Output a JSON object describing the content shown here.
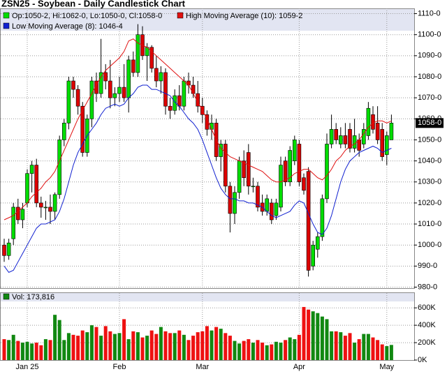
{
  "chart_data": {
    "type": "candlestick",
    "title": "ZSN25 - Soybean - Daily Candlestick Chart",
    "categories": [
      null,
      null,
      null,
      null,
      null,
      "Jan 25",
      null,
      null,
      null,
      null,
      null,
      null,
      null,
      null,
      null,
      null,
      null,
      null,
      null,
      null,
      null,
      null,
      null,
      null,
      null,
      "Feb",
      null,
      null,
      null,
      null,
      null,
      null,
      null,
      null,
      null,
      null,
      null,
      null,
      null,
      null,
      null,
      null,
      null,
      "Mar",
      null,
      null,
      null,
      null,
      null,
      null,
      null,
      null,
      null,
      null,
      null,
      null,
      null,
      null,
      null,
      null,
      null,
      null,
      null,
      null,
      "Apr",
      null,
      null,
      null,
      null,
      null,
      null,
      null,
      null,
      null,
      null,
      null,
      null,
      null,
      null,
      null,
      null,
      null,
      null,
      "May",
      null
    ],
    "ohlc": {
      "name": "Op:1050-2, Hi:1062-0, Lo:1050-0, Cl:1058-0",
      "up_color": "#00dd00",
      "down_color": "#dd0000",
      "open": [
        1000,
        995,
        1003,
        1018,
        1012,
        1020,
        1034,
        1038,
        1020,
        1018,
        1018,
        1016,
        1024,
        1050,
        1058,
        1078,
        1074,
        1066,
        1044,
        1060,
        1078,
        1072,
        1082,
        1078,
        1070,
        1072,
        1075,
        1070,
        1088,
        1082,
        1100,
        1090,
        1094,
        1084,
        1078,
        1082,
        1066,
        1064,
        1071,
        1066,
        1078,
        1076,
        1072,
        1066,
        1062,
        1055,
        1058,
        1042,
        1048,
        1028,
        1015,
        1025,
        1040,
        1044,
        1028,
        1028,
        1020,
        1016,
        1020,
        1014,
        1018,
        1040,
        1030,
        1040,
        1048,
        1032,
        1035,
        990,
        998,
        1004,
        1022,
        1048,
        1055,
        1048,
        1052,
        1055,
        1046,
        1050,
        1048,
        1052,
        1062,
        1058,
        1055,
        1043,
        1050
      ],
      "high": [
        1003,
        1003,
        1020,
        1022,
        1020,
        1036,
        1040,
        1041,
        1023,
        1021,
        1024,
        1025,
        1052,
        1060,
        1080,
        1080,
        1076,
        1068,
        1062,
        1080,
        1082,
        1098,
        1086,
        1088,
        1075,
        1080,
        1086,
        1090,
        1092,
        1105,
        1104,
        1096,
        1095,
        1090,
        1085,
        1084,
        1070,
        1074,
        1076,
        1080,
        1082,
        1080,
        1078,
        1070,
        1064,
        1062,
        1060,
        1050,
        1050,
        1030,
        1028,
        1042,
        1045,
        1048,
        1032,
        1030,
        1024,
        1024,
        1022,
        1022,
        1042,
        1042,
        1047,
        1052,
        1050,
        1034,
        1037,
        1002,
        1006,
        1024,
        1053,
        1062,
        1058,
        1056,
        1058,
        1058,
        1060,
        1053,
        1058,
        1068,
        1066,
        1066,
        1058,
        1054,
        1062
      ],
      "low": [
        992,
        993,
        1000,
        1010,
        1008,
        1018,
        1025,
        1018,
        1013,
        1012,
        1010,
        1012,
        1022,
        1047,
        1055,
        1070,
        1062,
        1042,
        1042,
        1056,
        1068,
        1070,
        1074,
        1065,
        1066,
        1068,
        1068,
        1063,
        1080,
        1080,
        1088,
        1078,
        1082,
        1075,
        1072,
        1062,
        1060,
        1062,
        1064,
        1064,
        1072,
        1070,
        1063,
        1058,
        1052,
        1050,
        1040,
        1035,
        1025,
        1006,
        1010,
        1022,
        1028,
        1024,
        1025,
        1016,
        1014,
        1014,
        1010,
        1012,
        1016,
        1028,
        1028,
        1038,
        1028,
        1024,
        985,
        988,
        994,
        1002,
        1020,
        1046,
        1048,
        1046,
        1046,
        1044,
        1044,
        1042,
        1046,
        1050,
        1053,
        1048,
        1040,
        1038,
        1050
      ],
      "close": [
        995,
        1001,
        1018,
        1012,
        1017,
        1034,
        1038,
        1020,
        1018,
        1018,
        1016,
        1024,
        1050,
        1058,
        1078,
        1074,
        1066,
        1044,
        1060,
        1078,
        1072,
        1082,
        1078,
        1070,
        1072,
        1075,
        1070,
        1088,
        1082,
        1100,
        1090,
        1094,
        1084,
        1078,
        1082,
        1066,
        1064,
        1071,
        1066,
        1078,
        1076,
        1072,
        1066,
        1062,
        1055,
        1058,
        1042,
        1048,
        1028,
        1015,
        1025,
        1040,
        1032,
        1028,
        1028,
        1018,
        1016,
        1022,
        1012,
        1020,
        1038,
        1030,
        1045,
        1050,
        1030,
        1026,
        988,
        1000,
        1004,
        1022,
        1048,
        1055,
        1050,
        1052,
        1048,
        1046,
        1052,
        1045,
        1055,
        1065,
        1055,
        1050,
        1042,
        1052,
        1058
      ]
    },
    "last_price_label": "1058-0",
    "series": [
      {
        "name": "High Moving Average (10): 1059-2",
        "color": "#e01010",
        "values": [
          1012,
          1013,
          1014,
          1016,
          1018,
          1020,
          1023,
          1025,
          1027,
          1030,
          1032,
          1035,
          1040,
          1045,
          1050,
          1055,
          1060,
          1064,
          1068,
          1072,
          1076,
          1080,
          1083,
          1085,
          1087,
          1089,
          1092,
          1097,
          1098,
          1096,
          1095,
          1094,
          1092,
          1090,
          1088,
          1086,
          1084,
          1082,
          1080,
          1078,
          1076,
          1072,
          1068,
          1064,
          1060,
          1055,
          1050,
          1046,
          1044,
          1042,
          1041,
          1040,
          1039,
          1038,
          1037,
          1036,
          1035,
          1033,
          1031,
          1030,
          1030,
          1031,
          1032,
          1034,
          1035,
          1036,
          1036,
          1034,
          1032,
          1031,
          1033,
          1036,
          1040,
          1042,
          1045,
          1047,
          1048,
          1050,
          1053,
          1056,
          1058,
          1059,
          1059,
          1058,
          1059
        ]
      },
      {
        "name": "Low Moving Average (8): 1046-4",
        "color": "#1020d0",
        "values": [
          990,
          987,
          988,
          992,
          996,
          1000,
          1004,
          1008,
          1010,
          1010,
          1011,
          1012,
          1016,
          1022,
          1030,
          1038,
          1044,
          1048,
          1052,
          1055,
          1058,
          1062,
          1065,
          1066,
          1067,
          1066,
          1067,
          1070,
          1072,
          1075,
          1076,
          1076,
          1074,
          1074,
          1073,
          1072,
          1071,
          1068,
          1066,
          1063,
          1060,
          1058,
          1055,
          1050,
          1044,
          1038,
          1032,
          1027,
          1024,
          1022,
          1022,
          1021,
          1021,
          1020,
          1020,
          1019,
          1018,
          1016,
          1014,
          1013,
          1014,
          1015,
          1016,
          1019,
          1021,
          1020,
          1015,
          1010,
          1006,
          1005,
          1008,
          1014,
          1022,
          1030,
          1036,
          1040,
          1042,
          1044,
          1045,
          1046,
          1047,
          1046,
          1044,
          1045,
          1046
        ]
      }
    ],
    "ylim": [
      979.5,
      1112.5
    ],
    "yticks": [
      {
        "value": 980,
        "label": "980-0"
      },
      {
        "value": 990,
        "label": "990-0"
      },
      {
        "value": 1000,
        "label": "1000-0"
      },
      {
        "value": 1010,
        "label": "1010-0"
      },
      {
        "value": 1020,
        "label": "1020-0"
      },
      {
        "value": 1030,
        "label": "1030-0"
      },
      {
        "value": 1040,
        "label": "1040-0"
      },
      {
        "value": 1050,
        "label": "1050-0"
      },
      {
        "value": 1060,
        "label": "1060-0"
      },
      {
        "value": 1070,
        "label": "1070-0"
      },
      {
        "value": 1080,
        "label": "1080-0"
      },
      {
        "value": 1090,
        "label": "1090-0"
      },
      {
        "value": 1100,
        "label": "1100-0"
      },
      {
        "value": 1110,
        "label": "1110-0"
      }
    ],
    "volume": {
      "name": "Vol: 173,816",
      "values": [
        240000,
        230000,
        290000,
        220000,
        200000,
        210000,
        190000,
        200000,
        170000,
        240000,
        230000,
        520000,
        460000,
        230000,
        310000,
        290000,
        280000,
        340000,
        320000,
        400000,
        380000,
        280000,
        390000,
        330000,
        300000,
        310000,
        470000,
        240000,
        330000,
        320000,
        260000,
        280000,
        340000,
        300000,
        380000,
        330000,
        310000,
        310000,
        340000,
        290000,
        230000,
        280000,
        320000,
        330000,
        390000,
        340000,
        380000,
        360000,
        310000,
        280000,
        220000,
        190000,
        220000,
        240000,
        200000,
        230000,
        200000,
        170000,
        180000,
        210000,
        200000,
        230000,
        260000,
        240000,
        290000,
        610000,
        580000,
        560000,
        540000,
        500000,
        470000,
        330000,
        330000,
        320000,
        280000,
        310000,
        200000,
        240000,
        300000,
        300000,
        260000,
        230000,
        180000,
        160000,
        173816
      ],
      "up_color": "#118811",
      "down_color": "#ee1111",
      "ylim": [
        0,
        770000
      ],
      "yticks": [
        {
          "value": 0,
          "label": "0K"
        },
        {
          "value": 200000,
          "label": "200K"
        },
        {
          "value": 400000,
          "label": "400K"
        },
        {
          "value": 600000,
          "label": "600K"
        }
      ]
    },
    "grid": true
  }
}
